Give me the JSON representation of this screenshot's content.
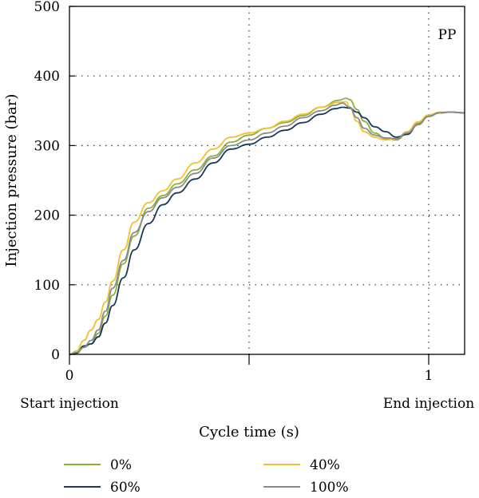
{
  "chart_data": {
    "type": "line",
    "title": "",
    "annotation": "PP",
    "xlabel": "Cycle time (s)",
    "ylabel": "Injection pressure (bar)",
    "xlim": [
      0,
      1.1
    ],
    "ylim": [
      0,
      500
    ],
    "x_ticks": [
      {
        "value": 0,
        "label": "0"
      },
      {
        "value": 0.5,
        "label": ""
      },
      {
        "value": 1,
        "label": "1"
      }
    ],
    "y_ticks": [
      0,
      100,
      200,
      300,
      400,
      500
    ],
    "x_annotations": {
      "start": "Start injection",
      "end": "End injection"
    },
    "grid": true,
    "legend_position": "bottom",
    "series": [
      {
        "name": "0%",
        "color": "#8bb03a",
        "x": [
          0,
          0.02,
          0.04,
          0.06,
          0.08,
          0.1,
          0.12,
          0.15,
          0.18,
          0.22,
          0.26,
          0.3,
          0.35,
          0.4,
          0.45,
          0.5,
          0.55,
          0.6,
          0.65,
          0.7,
          0.75,
          0.77,
          0.78,
          0.8,
          0.82,
          0.85,
          0.88,
          0.91,
          0.94,
          0.97,
          1.0,
          1.03,
          1.06,
          1.1
        ],
        "y": [
          0,
          2,
          10,
          15,
          30,
          55,
          85,
          130,
          170,
          210,
          228,
          245,
          265,
          285,
          305,
          315,
          325,
          333,
          343,
          355,
          365,
          368,
          366,
          352,
          335,
          318,
          310,
          308,
          318,
          332,
          342,
          347,
          348,
          347
        ]
      },
      {
        "name": "40%",
        "color": "#f2c12e",
        "x": [
          0,
          0.02,
          0.04,
          0.06,
          0.08,
          0.1,
          0.12,
          0.15,
          0.18,
          0.22,
          0.26,
          0.3,
          0.35,
          0.4,
          0.45,
          0.5,
          0.55,
          0.6,
          0.65,
          0.7,
          0.75,
          0.77,
          0.78,
          0.8,
          0.82,
          0.85,
          0.88,
          0.91,
          0.94,
          0.97,
          1.0,
          1.03,
          1.06,
          1.1
        ],
        "y": [
          0,
          5,
          20,
          35,
          50,
          75,
          105,
          150,
          190,
          218,
          235,
          252,
          275,
          295,
          312,
          318,
          325,
          335,
          345,
          355,
          362,
          363,
          355,
          335,
          320,
          312,
          308,
          310,
          320,
          334,
          344,
          348,
          348,
          347
        ]
      },
      {
        "name": "60%",
        "color": "#163a5a",
        "x": [
          0,
          0.02,
          0.04,
          0.06,
          0.08,
          0.1,
          0.12,
          0.15,
          0.18,
          0.22,
          0.26,
          0.3,
          0.35,
          0.4,
          0.45,
          0.5,
          0.55,
          0.6,
          0.65,
          0.7,
          0.74,
          0.76,
          0.78,
          0.8,
          0.82,
          0.85,
          0.88,
          0.91,
          0.94,
          0.97,
          1.0,
          1.03,
          1.06,
          1.1
        ],
        "y": [
          0,
          2,
          12,
          15,
          25,
          45,
          70,
          110,
          150,
          188,
          215,
          232,
          252,
          275,
          295,
          302,
          312,
          322,
          333,
          345,
          353,
          355,
          354,
          348,
          340,
          327,
          320,
          312,
          316,
          330,
          342,
          347,
          348,
          347
        ]
      },
      {
        "name": "100%",
        "color": "#8c8c8c",
        "x": [
          0,
          0.02,
          0.04,
          0.06,
          0.08,
          0.1,
          0.12,
          0.15,
          0.18,
          0.22,
          0.26,
          0.3,
          0.35,
          0.4,
          0.45,
          0.5,
          0.55,
          0.6,
          0.65,
          0.7,
          0.74,
          0.76,
          0.78,
          0.8,
          0.82,
          0.85,
          0.88,
          0.91,
          0.94,
          0.97,
          1.0,
          1.03,
          1.06,
          1.1
        ],
        "y": [
          0,
          3,
          10,
          20,
          35,
          62,
          95,
          135,
          175,
          205,
          225,
          240,
          260,
          282,
          300,
          308,
          318,
          328,
          340,
          350,
          358,
          361,
          355,
          340,
          325,
          315,
          311,
          310,
          318,
          330,
          342,
          347,
          348,
          347
        ]
      }
    ]
  }
}
